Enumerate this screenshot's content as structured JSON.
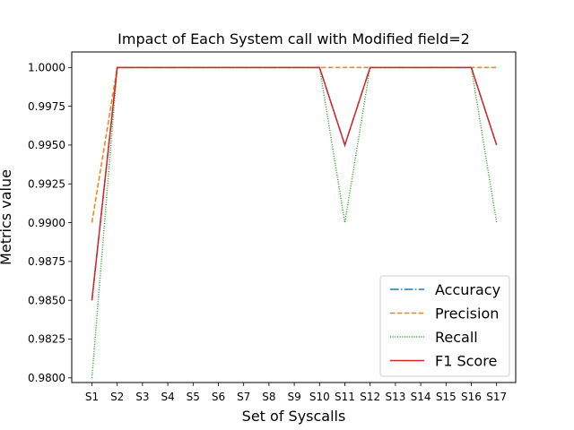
{
  "chart_data": {
    "type": "line",
    "title": "Impact of Each System call with Modified field=2",
    "xlabel": "Set of Syscalls",
    "ylabel": "Metrics value",
    "categories": [
      "S1",
      "S2",
      "S3",
      "S4",
      "S5",
      "S6",
      "S7",
      "S8",
      "S9",
      "S10",
      "S11",
      "S12",
      "S13",
      "S14",
      "S15",
      "S16",
      "S17"
    ],
    "ylim": [
      0.9797,
      1.001
    ],
    "yticks": [
      "0.9800",
      "0.9825",
      "0.9850",
      "0.9875",
      "0.9900",
      "0.9925",
      "0.9950",
      "0.9975",
      "1.0000"
    ],
    "grid": false,
    "legend_position": "lower-right",
    "series": [
      {
        "name": "Accuracy",
        "color": "#1f77b4",
        "style": "dashdot",
        "values": [
          0.985,
          1,
          1,
          1,
          1,
          1,
          1,
          1,
          1,
          1,
          0.995,
          1,
          1,
          1,
          1,
          1,
          0.995
        ]
      },
      {
        "name": "Precision",
        "color": "#ff7f0e",
        "style": "dashed",
        "values": [
          0.99,
          1,
          1,
          1,
          1,
          1,
          1,
          1,
          1,
          1,
          1,
          1,
          1,
          1,
          1,
          1,
          1
        ]
      },
      {
        "name": "Recall",
        "color": "#2ca02c",
        "style": "dotted",
        "values": [
          0.98,
          1,
          1,
          1,
          1,
          1,
          1,
          1,
          1,
          1,
          0.99,
          1,
          1,
          1,
          1,
          1,
          0.99
        ]
      },
      {
        "name": "F1 Score",
        "color": "#d62728",
        "style": "solid",
        "values": [
          0.985,
          1,
          1,
          1,
          1,
          1,
          1,
          1,
          1,
          1,
          0.995,
          1,
          1,
          1,
          1,
          1,
          0.995
        ]
      }
    ]
  }
}
